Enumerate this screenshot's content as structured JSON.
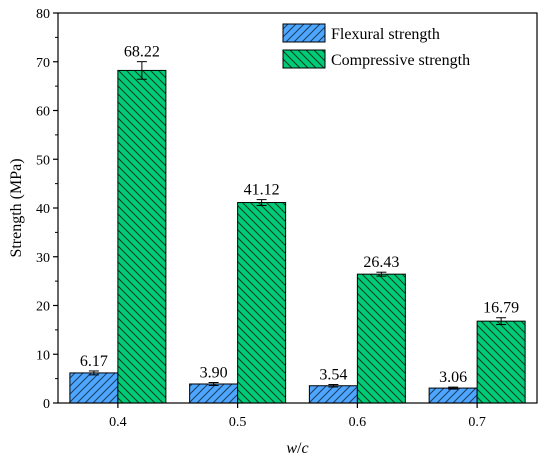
{
  "chart_data": {
    "type": "bar",
    "categories": [
      "0.4",
      "0.5",
      "0.6",
      "0.7"
    ],
    "series": [
      {
        "name": "Flexural strength",
        "values": [
          6.17,
          3.9,
          3.54,
          3.06
        ],
        "value_labels": [
          "6.17",
          "3.90",
          "3.54",
          "3.06"
        ],
        "errors": [
          0.4,
          0.3,
          0.25,
          0.2
        ],
        "color": "#4da6ff",
        "hatch": "forward-diagonal"
      },
      {
        "name": "Compressive strength",
        "values": [
          68.22,
          41.12,
          26.43,
          16.79
        ],
        "value_labels": [
          "68.22",
          "41.12",
          "26.43",
          "16.79"
        ],
        "errors": [
          1.8,
          0.6,
          0.4,
          0.7
        ],
        "color": "#00cc77",
        "hatch": "back-diagonal"
      }
    ],
    "xlabel_parts": [
      "w",
      "/",
      "c"
    ],
    "ylabel": "Strength (MPa)",
    "ylim": [
      0,
      80
    ],
    "yticks": [
      0,
      10,
      20,
      30,
      40,
      50,
      60,
      70,
      80
    ],
    "grid": false,
    "legend_position": "top-right"
  }
}
